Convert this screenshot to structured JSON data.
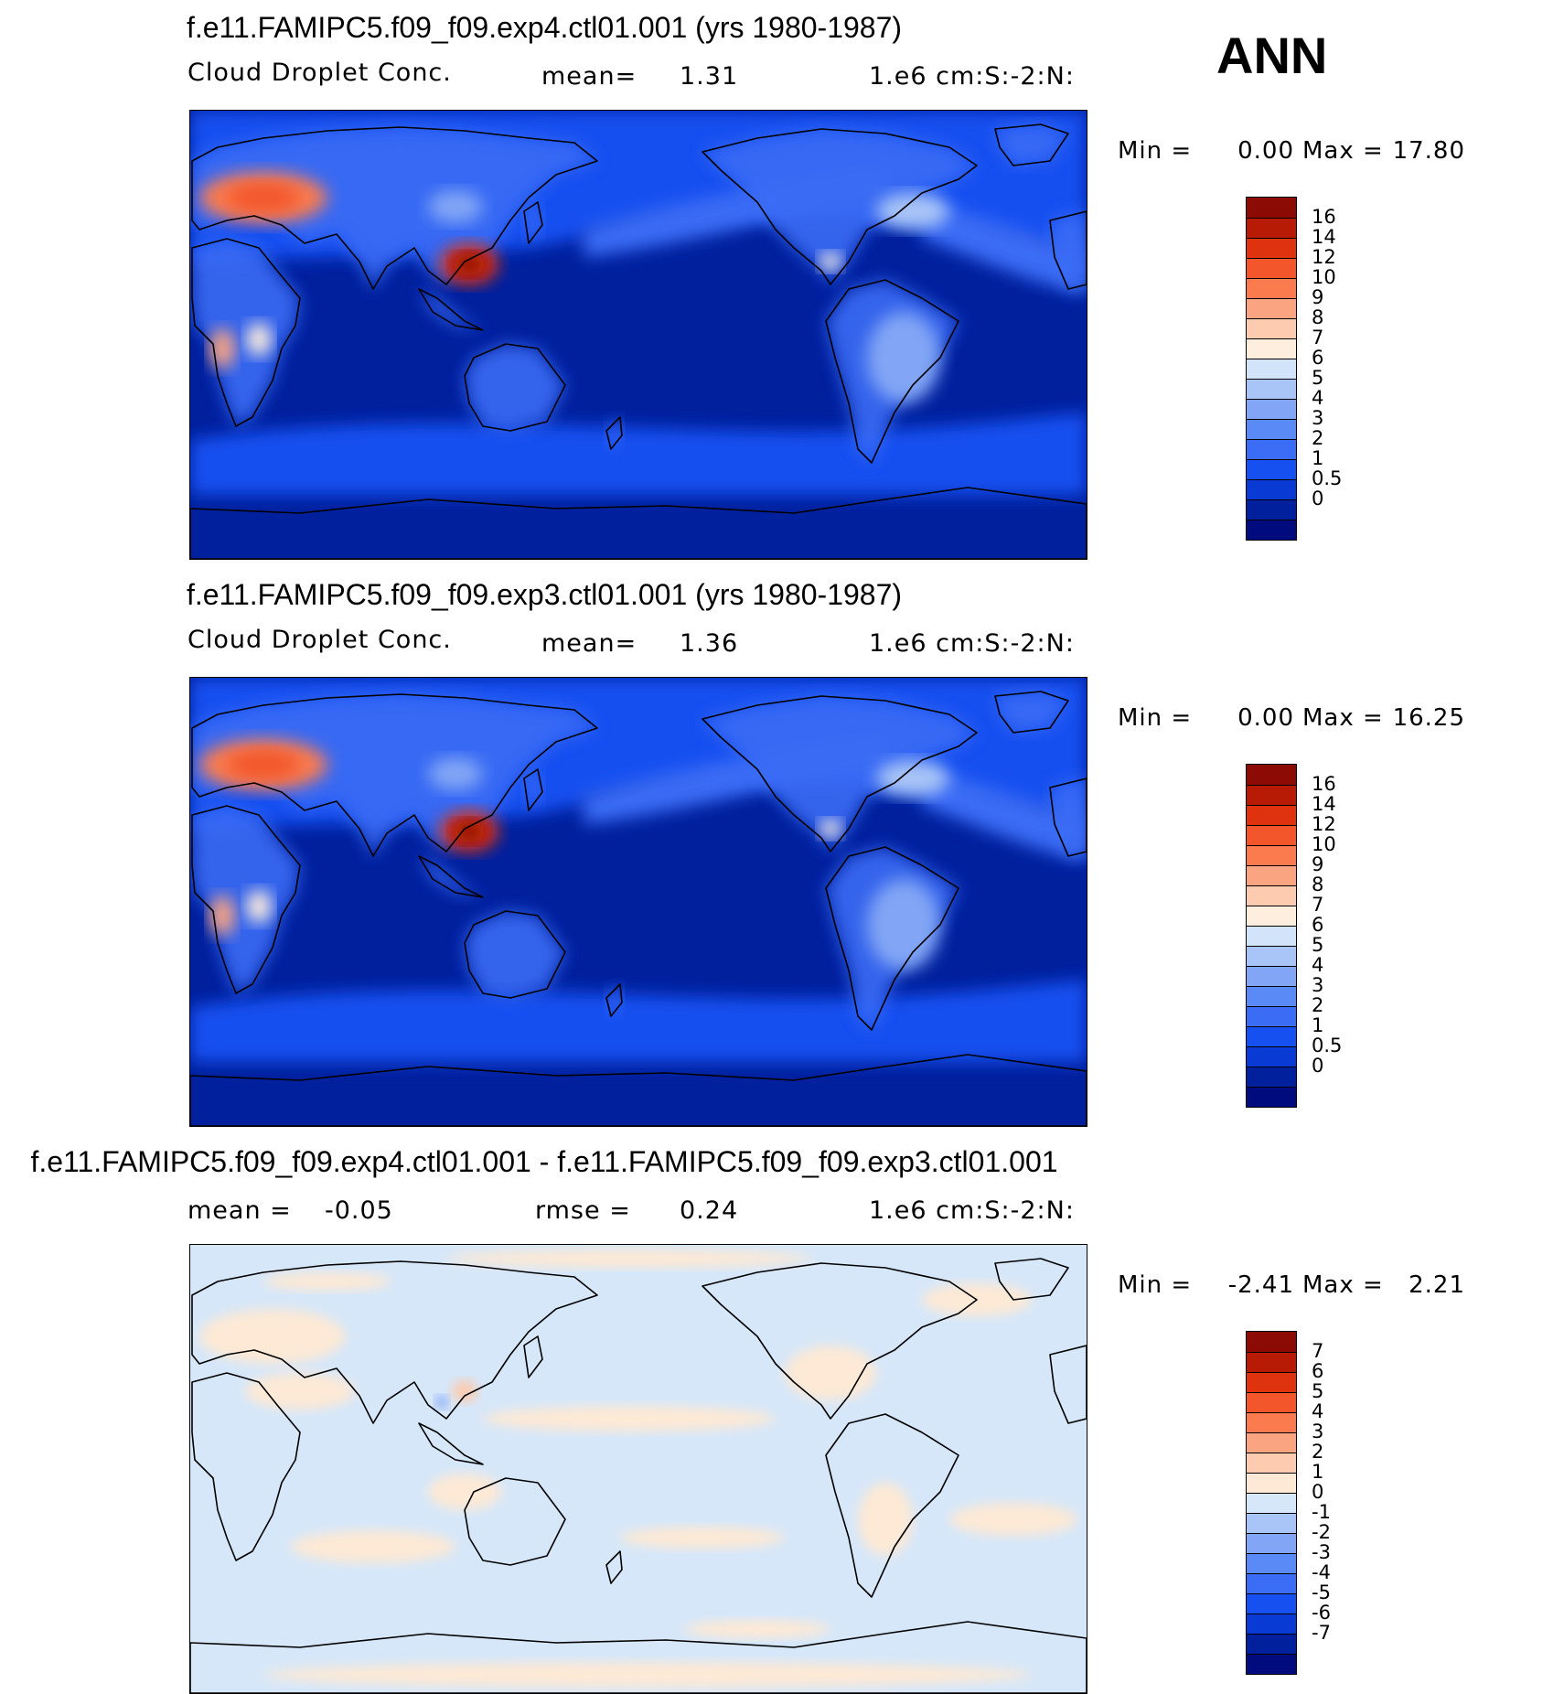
{
  "season_label": "ANN",
  "colors": {
    "scale": [
      "#000c7d",
      "#00209e",
      "#0a3ad4",
      "#1650f0",
      "#3b6cf5",
      "#5a8af5",
      "#82a6f5",
      "#a9c5f7",
      "#d1e4f9",
      "#feeedd",
      "#fccbb0",
      "#fba481",
      "#fb7b4f",
      "#f2562a",
      "#df3310",
      "#b71b05",
      "#8c0c05"
    ],
    "diff_scale": [
      "#000c7d",
      "#00209e",
      "#0a3ad4",
      "#1650f0",
      "#3b6cf5",
      "#5a8af5",
      "#82a6f5",
      "#a9c5f7",
      "#d6e7f9",
      "#fde9d5",
      "#fccbb0",
      "#fba481",
      "#fb7b4f",
      "#f2562a",
      "#df3310",
      "#b71b05",
      "#8c0c05"
    ]
  },
  "panels": [
    {
      "title": "f.e11.FAMIPC5.f09_f09.exp4.ctl01.001 (yrs 1980-1987)",
      "variable": "Cloud Droplet Conc.",
      "stat1_label": "mean=",
      "stat1_value": "1.31",
      "stat2_label": "",
      "stat2_value": "",
      "units": "1.e6 cm:S:-2:N:",
      "min_label": "Min =",
      "min_value": "0.00",
      "max_label": "Max =",
      "max_value": "17.80",
      "colorbar_labels": [
        "16",
        "14",
        "12",
        "10",
        "9",
        "8",
        "7",
        "6",
        "5",
        "4",
        "3",
        "2",
        "1",
        "0.5",
        "0"
      ],
      "field": "absolute"
    },
    {
      "title": "f.e11.FAMIPC5.f09_f09.exp3.ctl01.001 (yrs 1980-1987)",
      "variable": "Cloud Droplet Conc.",
      "stat1_label": "mean=",
      "stat1_value": "1.36",
      "stat2_label": "",
      "stat2_value": "",
      "units": "1.e6 cm:S:-2:N:",
      "min_label": "Min =",
      "min_value": "0.00",
      "max_label": "Max =",
      "max_value": "16.25",
      "colorbar_labels": [
        "16",
        "14",
        "12",
        "10",
        "9",
        "8",
        "7",
        "6",
        "5",
        "4",
        "3",
        "2",
        "1",
        "0.5",
        "0"
      ],
      "field": "absolute"
    },
    {
      "title": "f.e11.FAMIPC5.f09_f09.exp4.ctl01.001 - f.e11.FAMIPC5.f09_f09.exp3.ctl01.001",
      "variable": "",
      "stat1_label": "mean =",
      "stat1_value": "-0.05",
      "stat2_label": "rmse =",
      "stat2_value": "0.24",
      "units": "1.e6 cm:S:-2:N:",
      "min_label": "Min =",
      "min_value": "-2.41",
      "max_label": "Max =",
      "max_value": "2.21",
      "colorbar_labels": [
        "7",
        "6",
        "5",
        "4",
        "3",
        "2",
        "1",
        "0",
        "-1",
        "-2",
        "-3",
        "-4",
        "-5",
        "-6",
        "-7"
      ],
      "field": "difference"
    }
  ]
}
